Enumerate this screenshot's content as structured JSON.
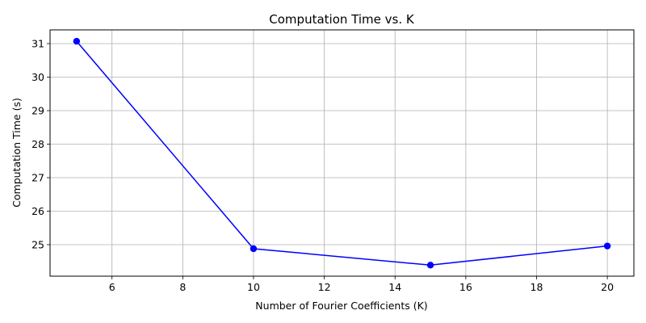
{
  "chart_data": {
    "type": "line",
    "title": "Computation Time vs. K",
    "xlabel": "Number of Fourier Coefficients (K)",
    "ylabel": "Computation Time (s)",
    "x": [
      5,
      10,
      15,
      20
    ],
    "series": [
      {
        "values": [
          31.07,
          24.88,
          24.39,
          24.96
        ],
        "color": "#0000ff",
        "marker": "circle"
      }
    ],
    "xlim": [
      4.25,
      20.75
    ],
    "ylim": [
      24.06,
      31.41
    ],
    "xticks": [
      6,
      8,
      10,
      12,
      14,
      16,
      18,
      20
    ],
    "yticks": [
      25,
      26,
      27,
      28,
      29,
      30,
      31
    ],
    "grid": true,
    "grid_color": "#b0b0b0"
  }
}
